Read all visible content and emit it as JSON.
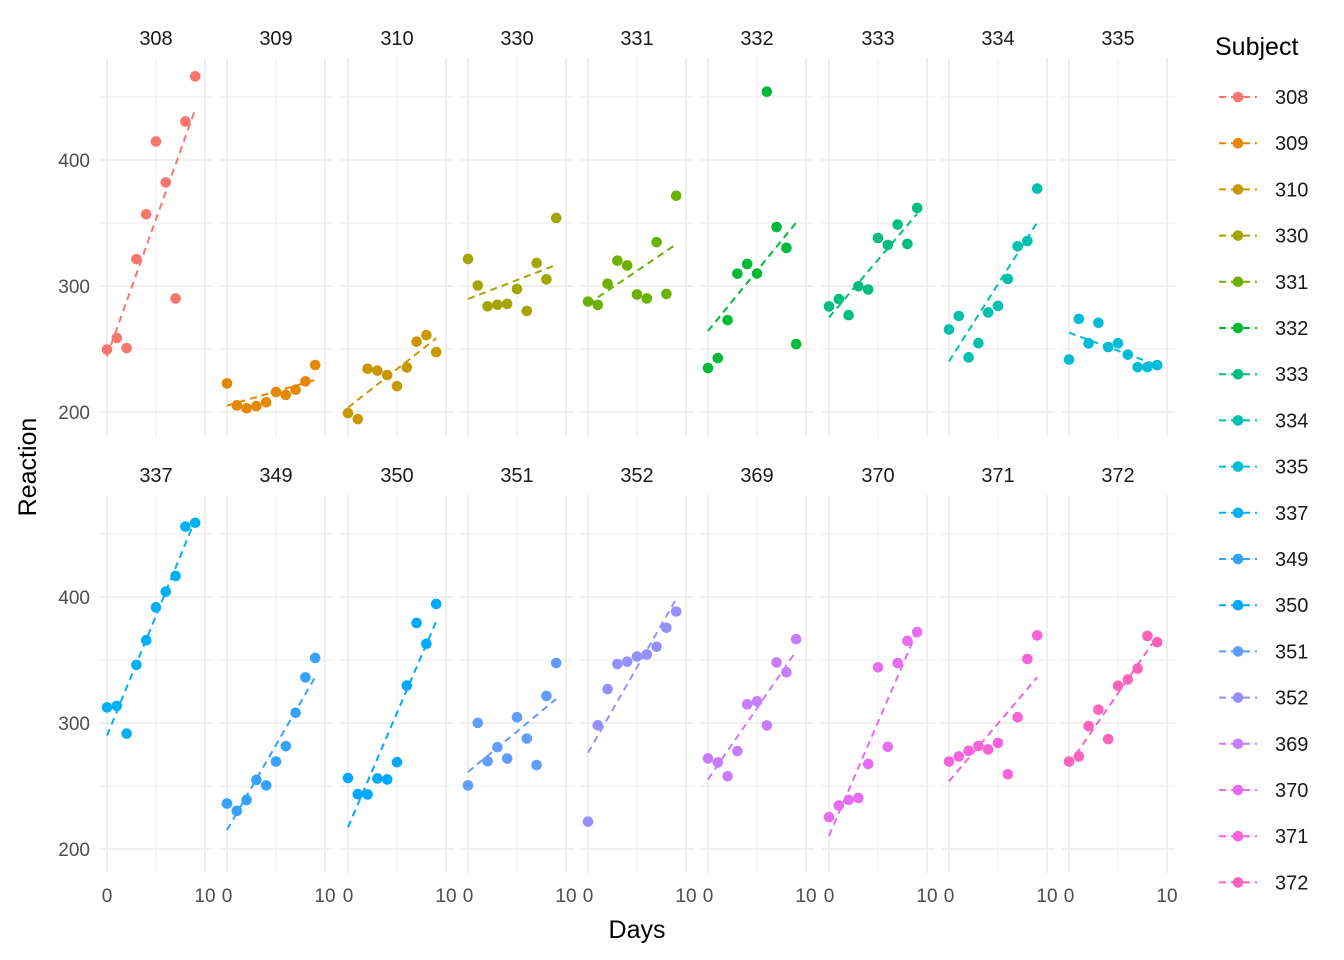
{
  "chart_data": {
    "type": "scatter",
    "facets": "Subject",
    "xlabel": "Days",
    "ylabel": "Reaction",
    "xlim": [
      0,
      10
    ],
    "ylim": [
      180,
      475
    ],
    "x_ticks": [
      "0",
      "10"
    ],
    "y_ticks": [
      200,
      300,
      400
    ],
    "grid": true,
    "trendline": "dashed linear fit per subject",
    "legend": {
      "title": "Subject",
      "position": "right"
    },
    "x": [
      0,
      1,
      2,
      3,
      4,
      5,
      6,
      7,
      8,
      9
    ],
    "series": [
      {
        "name": "308",
        "color": "#F8766D",
        "values": [
          249.6,
          258.7,
          250.8,
          321.4,
          356.9,
          414.7,
          382.2,
          290.1,
          430.6,
          466.4
        ]
      },
      {
        "name": "309",
        "color": "#E58700",
        "values": [
          222.7,
          205.3,
          203.0,
          204.7,
          207.7,
          215.9,
          213.6,
          217.7,
          224.3,
          237.3
        ]
      },
      {
        "name": "310",
        "color": "#C99800",
        "values": [
          199.1,
          194.3,
          234.3,
          232.8,
          229.3,
          220.5,
          235.4,
          255.8,
          261.0,
          247.5
        ]
      },
      {
        "name": "330",
        "color": "#A3A500",
        "values": [
          321.5,
          300.4,
          283.9,
          285.1,
          285.8,
          297.6,
          280.2,
          318.3,
          305.3,
          354.0
        ]
      },
      {
        "name": "331",
        "color": "#6BB100",
        "values": [
          287.6,
          285.0,
          301.8,
          320.1,
          316.3,
          293.3,
          290.1,
          334.8,
          293.7,
          371.6
        ]
      },
      {
        "name": "332",
        "color": "#00BA38",
        "values": [
          234.9,
          242.8,
          272.9,
          309.8,
          317.5,
          309.9,
          454.2,
          346.8,
          330.3,
          253.9
        ]
      },
      {
        "name": "333",
        "color": "#00BF7D",
        "values": [
          283.8,
          289.6,
          276.8,
          299.8,
          297.2,
          338.1,
          332.6,
          348.8,
          333.4,
          362.0
        ]
      },
      {
        "name": "334",
        "color": "#00C0AF",
        "values": [
          265.5,
          276.2,
          243.4,
          254.7,
          279.0,
          284.2,
          305.6,
          331.5,
          335.7,
          377.3
        ]
      },
      {
        "name": "335",
        "color": "#00BCD8",
        "values": [
          241.6,
          273.9,
          254.5,
          270.8,
          251.5,
          254.6,
          245.5,
          235.6,
          235.6,
          237.2
        ]
      },
      {
        "name": "337",
        "color": "#00B0F6",
        "values": [
          312.4,
          313.6,
          291.6,
          346.1,
          365.7,
          391.8,
          404.3,
          416.7,
          455.9,
          458.9
        ]
      },
      {
        "name": "349",
        "color": "#35A2FF",
        "values": [
          236.1,
          230.3,
          238.9,
          254.9,
          250.5,
          269.4,
          281.6,
          308.1,
          336.2,
          351.6
        ]
      },
      {
        "name": "350",
        "color": "#00A9FF",
        "values": [
          256.3,
          243.5,
          243.3,
          256.0,
          255.2,
          268.9,
          329.7,
          379.4,
          362.9,
          394.5
        ]
      },
      {
        "name": "351",
        "color": "#619CFF",
        "values": [
          250.5,
          300.1,
          269.6,
          280.8,
          271.8,
          304.6,
          287.7,
          266.6,
          321.5,
          347.6
        ]
      },
      {
        "name": "352",
        "color": "#9590FF",
        "values": [
          221.7,
          298.2,
          326.9,
          346.8,
          348.7,
          352.8,
          354.4,
          360.5,
          375.6,
          388.5
        ]
      },
      {
        "name": "369",
        "color": "#C77CFF",
        "values": [
          271.9,
          268.7,
          257.7,
          277.7,
          314.8,
          317.2,
          298.1,
          348.1,
          340.3,
          366.5
        ]
      },
      {
        "name": "370",
        "color": "#E76BF3",
        "values": [
          225.3,
          234.5,
          238.9,
          240.5,
          267.5,
          344.2,
          281.1,
          347.6,
          365.2,
          372.2
        ]
      },
      {
        "name": "371",
        "color": "#FA62DB",
        "values": [
          269.4,
          273.5,
          277.9,
          281.8,
          279.0,
          284.2,
          259.3,
          304.6,
          350.8,
          369.5
        ]
      },
      {
        "name": "372",
        "color": "#FF62BC",
        "values": [
          269.4,
          273.5,
          297.6,
          310.6,
          287.2,
          329.6,
          334.5,
          343.2,
          369.1,
          364.1
        ]
      }
    ]
  }
}
